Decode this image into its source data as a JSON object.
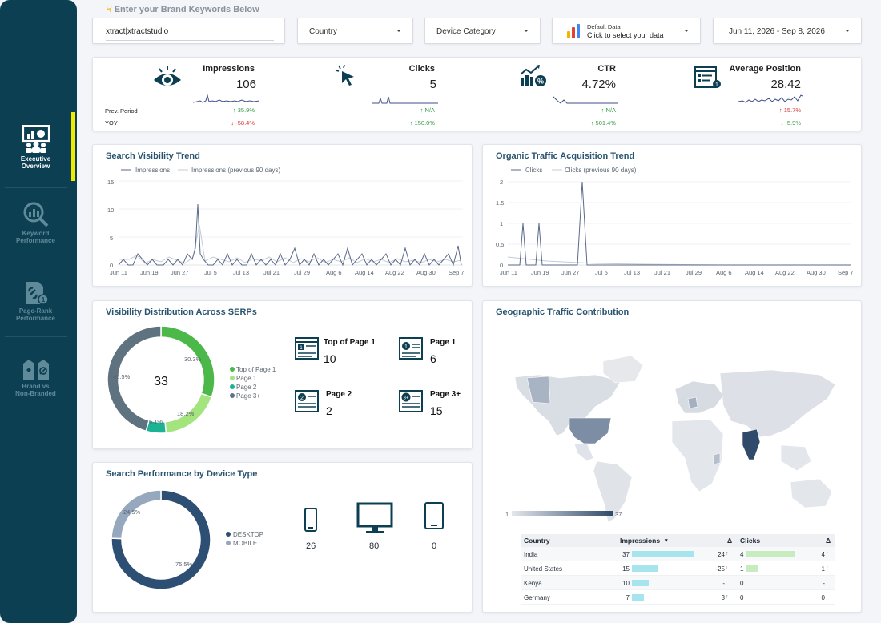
{
  "sidebar": {
    "items": [
      {
        "label_1": "Executive",
        "label_2": "Overview",
        "icon": "presentation-icon"
      },
      {
        "label_1": "Keyword",
        "label_2": "Performance",
        "icon": "magnifier-chart-icon"
      },
      {
        "label_1": "Page-Rank",
        "label_2": "Performance",
        "icon": "page-link-icon"
      },
      {
        "label_1": "Brand vs",
        "label_2": "Non-Branded",
        "icon": "tag-icon"
      }
    ]
  },
  "filters": {
    "keyword_label": "Enter your Brand Keywords Below",
    "keyword_value": "xtract|xtractstudio",
    "country": "Country",
    "device": "Device Category",
    "data_source_top": "Default Data",
    "data_source_bottom": "Click to select your data",
    "date_range": "Jun 11, 2026 - Sep 8, 2026"
  },
  "kpis": {
    "prev_label": "Prev. Period",
    "yoy_label": "YOY",
    "items": [
      {
        "name": "Impressions",
        "value": "106",
        "prev": "↑ 35.9%",
        "prev_dir": "up",
        "yoy": "↓ -58.4%",
        "yoy_dir": "down",
        "icon": "eye-icon"
      },
      {
        "name": "Clicks",
        "value": "5",
        "prev": "↑ N/A",
        "prev_dir": "up",
        "yoy": "↑ 150.0%",
        "yoy_dir": "up",
        "icon": "cursor-click-icon"
      },
      {
        "name": "CTR",
        "value": "4.72%",
        "prev": "↑ N/A",
        "prev_dir": "up",
        "yoy": "↑ 501.4%",
        "yoy_dir": "up",
        "icon": "growth-percent-icon"
      },
      {
        "name": "Average Position",
        "value": "28.42",
        "prev": "↑ 15.7%",
        "prev_dir": "down",
        "yoy": "↓ -5.9%",
        "yoy_dir": "up",
        "icon": "ranking-page-icon"
      }
    ]
  },
  "visibility_trend": {
    "title": "Search Visibility Trend",
    "legend": [
      "Impressions",
      "Impressions (previous 90 days)"
    ],
    "y_ticks": [
      "15",
      "10",
      "5",
      "0"
    ],
    "x_ticks": [
      "Jun 11",
      "Jun 19",
      "Jun 27",
      "Jul 5",
      "Jul 13",
      "Jul 21",
      "Jul 29",
      "Aug 6",
      "Aug 14",
      "Aug 22",
      "Aug 30",
      "Sep 7"
    ]
  },
  "traffic_trend": {
    "title": "Organic Traffic Acquisition Trend",
    "legend": [
      "Clicks",
      "Clicks (previous 90 days)"
    ],
    "y_ticks": [
      "2",
      "1.5",
      "1",
      "0.5",
      "0"
    ],
    "x_ticks": [
      "Jun 11",
      "Jun 19",
      "Jun 27",
      "Jul 5",
      "Jul 13",
      "Jul 21",
      "Jul 29",
      "Aug 6",
      "Aug 14",
      "Aug 22",
      "Aug 30",
      "Sep 7"
    ]
  },
  "serp": {
    "title": "Visibility Distribution Across SERPs",
    "total": "33",
    "slices": [
      {
        "name": "Top of Page 1",
        "pct": "30.3%",
        "value": 10,
        "color": "#4cb84a"
      },
      {
        "name": "Page 1",
        "pct": "18.2%",
        "value": 6,
        "color": "#a4e47e"
      },
      {
        "name": "Page 2",
        "pct": "6.1%",
        "value": 2,
        "color": "#1bb394"
      },
      {
        "name": "Page 3+",
        "pct": "45.5%",
        "value": 15,
        "color": "#5f7280"
      }
    ],
    "tiles": [
      {
        "title": "Top of Page 1",
        "value": "10",
        "icon": "page-top-icon"
      },
      {
        "title": "Page 1",
        "value": "6",
        "icon": "page-one-icon"
      },
      {
        "title": "Page 2",
        "value": "2",
        "icon": "page-two-icon"
      },
      {
        "title": "Page 3+",
        "value": "15",
        "icon": "page-three-plus-icon"
      }
    ]
  },
  "device": {
    "title": "Search Performance by Device Type",
    "slices": [
      {
        "name": "DESKTOP",
        "pct": "75.5%",
        "value": 80,
        "color": "#2e4f74"
      },
      {
        "name": "MOBILE",
        "pct": "24.5%",
        "value": 26,
        "color": "#95a8bd"
      }
    ],
    "tiles": [
      {
        "value": "26",
        "icon": "mobile-icon"
      },
      {
        "value": "80",
        "icon": "desktop-icon"
      },
      {
        "value": "0",
        "icon": "tablet-icon"
      }
    ]
  },
  "geo": {
    "title": "Geographic Traffic Contribution",
    "scale_min": "1",
    "scale_max": "37",
    "headers": {
      "country": "Country",
      "impressions": "Impressions",
      "sort": "▾",
      "delta": "Δ",
      "clicks": "Clicks",
      "delta2": "Δ"
    },
    "rows": [
      {
        "country": "India",
        "impressions": "37",
        "imp_frac": 1.0,
        "imp_delta": "24",
        "imp_delta_arrow": "↑",
        "clicks": "4",
        "clk_frac": 1.0,
        "clk_delta": "4",
        "clk_delta_arrow": "↑"
      },
      {
        "country": "United States",
        "impressions": "15",
        "imp_frac": 0.41,
        "imp_delta": "-25",
        "imp_delta_arrow": "↓",
        "clicks": "1",
        "clk_frac": 0.25,
        "clk_delta": "1",
        "clk_delta_arrow": "↑"
      },
      {
        "country": "Kenya",
        "impressions": "10",
        "imp_frac": 0.27,
        "imp_delta": "-",
        "imp_delta_arrow": "",
        "clicks": "0",
        "clk_frac": 0,
        "clk_delta": "-",
        "clk_delta_arrow": ""
      },
      {
        "country": "Germany",
        "impressions": "7",
        "imp_frac": 0.19,
        "imp_delta": "3",
        "imp_delta_arrow": "↑",
        "clicks": "0",
        "clk_frac": 0,
        "clk_delta": "0",
        "clk_delta_arrow": ""
      }
    ]
  },
  "colors": {
    "sidebar": "#0d3f52",
    "accent": "#f1ea00",
    "title": "#2a5470",
    "series": "#5a6a8a",
    "series_prev": "#c4cbd6",
    "map_high": "#2f4a6a",
    "map_low": "#e4e7ec"
  }
}
